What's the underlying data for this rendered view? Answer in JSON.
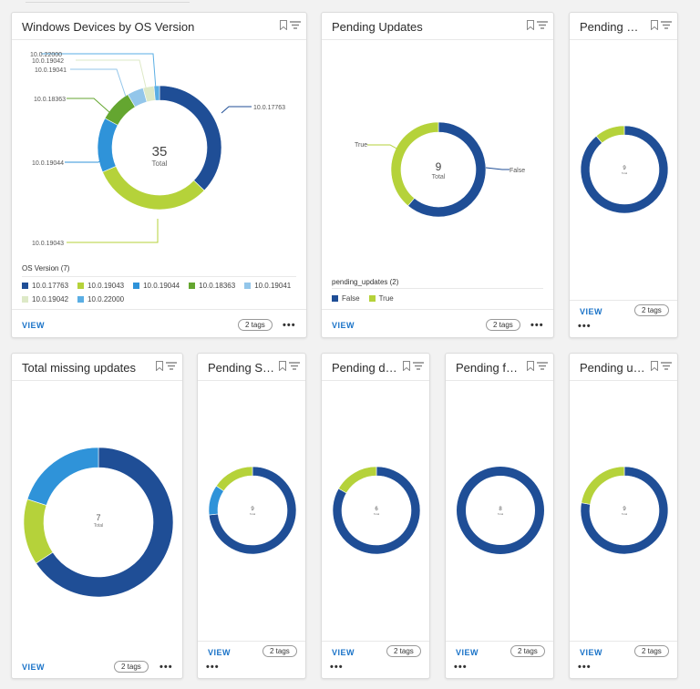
{
  "colors": {
    "dark_blue": "#1f4e96",
    "lime": "#b5d23a",
    "mid_blue": "#2f93d9",
    "green": "#64a630",
    "light_blue": "#93c6ea",
    "pale": "#dde9c7",
    "sky": "#5aaee4",
    "link": "#1a73c8"
  },
  "common": {
    "view_label": "VIEW",
    "tags_label": "2 tags",
    "more_label": "•••"
  },
  "cards": {
    "os_version": {
      "title": "Windows Devices by OS Version",
      "center_value": "35",
      "center_label": "Total",
      "legend_title": "OS Version  (7)",
      "legend": [
        "10.0.17763",
        "10.0.19043",
        "10.0.19044",
        "10.0.18363",
        "10.0.19041",
        "10.0.19042",
        "10.0.22000"
      ],
      "callouts": [
        "10.0.22000",
        "10.0.19042",
        "10.0.19041",
        "10.0.18363",
        "10.0.19044",
        "10.0.19043",
        "10.0.17763"
      ]
    },
    "pending_updates": {
      "title": "Pending Updates",
      "center_value": "9",
      "center_label": "Total",
      "legend_title": "pending_updates  (2)",
      "legend": [
        "False",
        "True"
      ],
      "callouts": [
        "True",
        "False"
      ]
    },
    "pending_re": {
      "title": "Pending Re...",
      "center_value": "9",
      "center_label": "Total"
    },
    "total_missing": {
      "title": "Total missing updates",
      "center_value": "7",
      "center_label": "Total"
    },
    "pending_sec": {
      "title": "Pending Sec...",
      "center_value": "9",
      "center_label": "Total"
    },
    "pending_defi": {
      "title": "Pending defi...",
      "center_value": "6",
      "center_label": "Total"
    },
    "pending_fea": {
      "title": "Pending fea...",
      "center_value": "8",
      "center_label": "Total"
    },
    "pending_upd": {
      "title": "Pending upd...",
      "center_value": "9",
      "center_label": "Total"
    }
  },
  "chart_data": [
    {
      "type": "pie",
      "title": "Windows Devices by OS Version",
      "total": 35,
      "categories": [
        "10.0.17763",
        "10.0.19043",
        "10.0.19044",
        "10.0.18363",
        "10.0.19041",
        "10.0.19042",
        "10.0.22000"
      ],
      "values": [
        13,
        11,
        5,
        3,
        1.5,
        1,
        0.5
      ]
    },
    {
      "type": "pie",
      "title": "Pending Updates",
      "total": 9,
      "categories": [
        "False",
        "True"
      ],
      "values": [
        5.5,
        3.5
      ]
    },
    {
      "type": "pie",
      "title": "Pending Re...",
      "total": 9,
      "values": [
        8,
        1
      ]
    },
    {
      "type": "pie",
      "title": "Total missing updates",
      "total": 7,
      "values": [
        4.6,
        1,
        1.4
      ]
    },
    {
      "type": "pie",
      "title": "Pending Sec...",
      "total": 9,
      "values": [
        6.6,
        1,
        1.4
      ]
    },
    {
      "type": "pie",
      "title": "Pending defi...",
      "total": 6,
      "values": [
        5,
        1
      ]
    },
    {
      "type": "pie",
      "title": "Pending fea...",
      "total": 8,
      "values": [
        8
      ]
    },
    {
      "type": "pie",
      "title": "Pending upd...",
      "total": 9,
      "values": [
        7,
        2
      ]
    }
  ]
}
